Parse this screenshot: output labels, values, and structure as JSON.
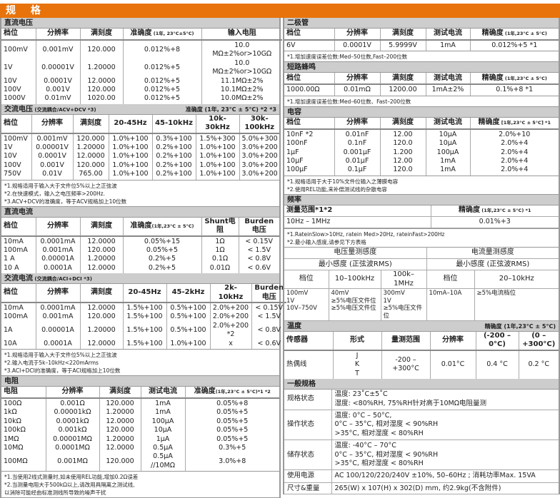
{
  "banner": {
    "title": "规 格"
  },
  "brand_color": "#e8730c",
  "left": [
    {
      "title": "直流电压",
      "tables": [
        {
          "head": [
            [
              "档位",
              "分辨率",
              "满刻度",
              {
                "text": "准确度",
                "sub": " (1年, 23°C±5°C)"
              },
              "输入电阻"
            ]
          ],
          "body": [
            [
              "100mV",
              "0.001mV",
              "120.000",
              "0.012%+8",
              "10.0 MΩ±2%or>10GΩ"
            ],
            [
              "1V",
              "0.00001V",
              "1.20000",
              "0.012%+5",
              "10.0 MΩ±2%or>10GΩ"
            ],
            [
              "10V",
              "0.0001V",
              "12.0000",
              "0.012%+5",
              "11.1MΩ±2%"
            ],
            [
              "100V",
              "0.001V",
              "120.000",
              "0.012%+5",
              "10.1MΩ±2%"
            ],
            [
              "1000V",
              "0.01mV",
              "1020.00",
              "0.012%+5",
              "10.0MΩ±2%"
            ]
          ]
        }
      ]
    },
    {
      "title": "交流电压",
      "title_note": " (交流耦合/ACV+DCV *3)",
      "title_right": "准确度 (1年, 23°C ± 5°C) *2 *3",
      "tables": [
        {
          "head": [
            [
              "档位",
              "分辨率",
              "满刻度",
              "20-45Hz",
              "45-10kHz",
              "10k-30kHz",
              "30k-100kHz"
            ]
          ],
          "body": [
            [
              "100mV",
              "0.001mV",
              "120.000",
              "1.0%+100",
              "0.3%+100",
              "1.5%+300",
              "5.0%+300"
            ],
            [
              "1V",
              "0.00001V",
              "1.20000",
              "1.0%+100",
              "0.2%+100",
              "1.0%+100",
              "3.0%+200"
            ],
            [
              "10V",
              "0.0001V",
              "12.0000",
              "1.0%+100",
              "0.2%+100",
              "1.0%+100",
              "3.0%+200"
            ],
            [
              "100V",
              "0.001V",
              "120.000",
              "1.0%+100",
              "0.2%+100",
              "1.0%+100",
              "3.0%+200"
            ],
            [
              "750V",
              "0.01V",
              "765.00",
              "1.0%+100",
              "0.2%+100",
              "1.0%+100",
              "3.0%+200"
            ]
          ]
        }
      ],
      "notes": [
        "*1.规格适用于输入大于文件位5%以上之正弦波",
        "*2.在快速模式，输入之电压频率>200Hz.",
        "*3.ACV+DCV的准确度，等于ACV规格加上10位数"
      ]
    },
    {
      "title": "直流电流",
      "tables": [
        {
          "head": [
            [
              "档位",
              "分辨率",
              "满刻度",
              {
                "text": "准确度",
                "sub": "(1年,23°C ± 5°C)"
              },
              "Shunt电阻",
              "Burden电压"
            ]
          ],
          "body": [
            [
              "10mA",
              "0.0001mA",
              "12.0000",
              "0.05%+15",
              "1Ω",
              "< 0.15V"
            ],
            [
              "100mA",
              "0.001mA",
              "120.000",
              "0.05%+5",
              "1Ω",
              "< 1.5V"
            ],
            [
              "1 A",
              "0.00001A",
              "1.20000",
              "0.2%+5",
              "0.1Ω",
              "< 0.8V"
            ],
            [
              "10 A",
              "0.0001A",
              "12.0000",
              "0.2%+5",
              "0.01Ω",
              "< 0.6V"
            ]
          ]
        }
      ]
    },
    {
      "title": "交流电流",
      "title_note": " (交流耦合/ACI+DCI *3)",
      "tables": [
        {
          "head": [
            [
              "档位",
              "分辨率",
              "满刻度",
              "20-45Hz",
              "45-2kHz",
              "2k-10kHz",
              "Burden电压"
            ]
          ],
          "body": [
            [
              "10mA",
              "0.0001mA",
              "12.0000",
              "1.5%+100",
              "0.5%+100",
              "2.0%+200",
              "< 0.15V"
            ],
            [
              "100mA",
              "0.001mA",
              "120.000",
              "1.5%+100",
              "0.5%+100",
              "2.0%+200",
              "< 1.5V"
            ],
            [
              "1A",
              "0.00001A",
              "1.20000",
              "1.5%+100",
              "0.5%+100",
              "2.0%+200 *2",
              "< 0.8V"
            ],
            [
              "10A",
              "0.0001A",
              "12.0000",
              "1.5%+100",
              "1.0%+100",
              "x",
              "< 0.6V"
            ]
          ]
        }
      ],
      "notes": [
        "*1.规格适用于输入大于文件位5%以上之正弦波",
        "*2.输入电流于5k–10kHz<220mArms",
        "*3.ACI+DCI的准确度，等于ACI规格加上10位数"
      ]
    },
    {
      "title": "电阻",
      "tables": [
        {
          "head": [
            [
              "电阻",
              "分辨率",
              "满刻度",
              "测试电流",
              {
                "text": "准确度",
                "sub": "(1年,23°C ± 5°C)*1 *2"
              }
            ]
          ],
          "body": [
            [
              "100Ω",
              "0.001Ω",
              "120.000",
              "1mA",
              "0.05%+8"
            ],
            [
              "1kΩ",
              "0.00001kΩ",
              "1.20000",
              "1mA",
              "0.05%+5"
            ],
            [
              "10kΩ",
              "0.0001kΩ",
              "12.0000",
              "100μA",
              "0.05%+5"
            ],
            [
              "100kΩ",
              "0.001kΩ",
              "120.000",
              "10μA",
              "0.05%+5"
            ],
            [
              "1MΩ",
              "0.00001MΩ",
              "1.20000",
              "1μA",
              "0.05%+5"
            ],
            [
              "10MΩ",
              "0.0001MΩ",
              "12.0000",
              "0.5μA",
              "0.3%+5"
            ],
            [
              "100MΩ",
              "0.001MΩ",
              "120.000",
              "0.5μA //10MΩ",
              "3.0%+8"
            ]
          ]
        }
      ],
      "notes": [
        "*1.当使用2线式测量时,如未使用REL功能,增加0.2Ω误差",
        "*2.当测量电阻大于500kΩ以上,请改用具隔离之测试线,",
        "以消除可能经由标准测线所导致的噪声干扰"
      ]
    }
  ],
  "right": [
    {
      "title": "二极管",
      "tables": [
        {
          "head": [
            [
              "档位",
              "分辨率",
              "满刻度",
              "测试电流",
              {
                "text": "精确度",
                "sub": " (1年,23°C ± 5°C)"
              }
            ]
          ],
          "body": [
            [
              "6V",
              "0.0001V",
              "5.9999V",
              "1mA",
              "0.012%+5  *1"
            ]
          ]
        }
      ],
      "notes": [
        "*1.增加速度误差位数:Med–50位数,Fast–200位数"
      ]
    },
    {
      "title": "短路蜂鸣",
      "tables": [
        {
          "head": [
            [
              "档位",
              "分辨率",
              "满刻度",
              "测试电流",
              {
                "text": "精确度",
                "sub": " (1年,23°C ± 5°C)"
              }
            ]
          ],
          "body": [
            [
              "1000.00Ω",
              "0.01mΩ",
              "1200.00",
              "1mA±2%",
              "0.1%+8  *1"
            ]
          ]
        }
      ],
      "notes": [
        "*1.增加速度误差位数:Med–60位数、Fast–200位数"
      ]
    },
    {
      "title": "电容",
      "tables": [
        {
          "head": [
            [
              "档位",
              "分辨率",
              "满刻度",
              "测试电流",
              {
                "text": "精确度",
                "sub": " [1年,23°C ± 5°C] *1"
              }
            ]
          ],
          "body": [
            [
              "10nF  *2",
              "0.01nF",
              "12.00",
              "10μA",
              "2.0%+10"
            ],
            [
              "100nF",
              "0.1nF",
              "120.0",
              "10μA",
              "2.0%+4"
            ],
            [
              "1μF",
              "0.001μF",
              "1.200",
              "100μA",
              "2.0%+4"
            ],
            [
              "10μF",
              "0.01μF",
              "12.00",
              "1mA",
              "2.0%+4"
            ],
            [
              "100μF",
              "0.1μF",
              "120.0",
              "1mA",
              "2.0%+4"
            ]
          ]
        }
      ],
      "notes": [
        "*1.规格适用于大于10%文件位输入之薄膜电容",
        "*2.使用REL功能,来补偿测试线的杂散电容"
      ]
    },
    {
      "title": "频率",
      "tables": [
        {
          "cls": "tbl-bordered",
          "head": [
            [
              "测量范围*1*2",
              {
                "text": "精确度",
                "sub": " (1年,23°C ± 5°C) *1"
              }
            ]
          ],
          "body": [
            [
              "10Hz – 1MHz",
              "0.01%+3"
            ]
          ]
        }
      ],
      "notes": [
        "*1.RateinSlow>10Hz, ratein Med>20Hz, rateinFast>200Hz",
        "*2.最小输入感度,请参见下方表格"
      ],
      "tables2": [
        {
          "cls": "sens tbl-bordered",
          "head": [
            [
              {
                "text": "电压量测感度",
                "colspan": 3
              },
              {
                "text": "电流量测感度",
                "colspan": 2
              }
            ],
            [
              {
                "text": "最小感度 (正弦波RMS)",
                "colspan": 3
              },
              {
                "text": "最小感度 (正弦波RMS)",
                "colspan": 2
              }
            ],
            [
              "档位",
              "10–100kHz",
              "100k–1MHz",
              "档位",
              "20–10kHz"
            ]
          ],
          "body": [
            [
              "100mV\n1V\n10V–750V",
              "40mV\n≥5%电压文件位\n≥5%电压文件位",
              "300mV\n1V\n≥5%电压文件位",
              "10mA–10A",
              "≥5%电流档位"
            ]
          ]
        }
      ]
    },
    {
      "title": "温度",
      "title_right": "精确度 (1年,23°C ± 5°C)",
      "tables": [
        {
          "head": [
            [
              "传感器",
              "形式",
              "量测范围",
              "分辨率",
              "(-200 – 0°C)",
              "(0 – +300°C)"
            ]
          ],
          "body": [
            [
              "热偶线",
              "J\nK\nT",
              "-200 – +300°C",
              "0.01°C",
              "0.4 °C",
              "0.2 °C"
            ]
          ]
        }
      ]
    },
    {
      "title": "一般规格",
      "tables": [
        {
          "cls": "gen",
          "body": [
            [
              "规格状态",
              "温度: 23˚C±5˚C\n湿度: <80%RH, 75%RH针对高于10MΩ电阻量测"
            ],
            [
              "操作状态",
              "温度: 0°C – 50°C,\n        0°C – 35°C, 相对湿度 < 90%RH\n        >35°C, 相对湿度 < 80%RH"
            ],
            [
              "储存状态",
              "温度: -40°C – 70°C\n0°C – 35°C, 相对湿度 < 90%RH\n>35°C, 相对湿度 < 80%RH"
            ],
            [
              "使用电源",
              "AC 100/120/220/240V ±10%, 50–60Hz ; 消耗功率Max. 15VA"
            ],
            [
              "尺寸&重量",
              "265(W) x 107(H) x 302(D) mm, 约2.9kg(不含附件)"
            ]
          ]
        }
      ]
    }
  ]
}
